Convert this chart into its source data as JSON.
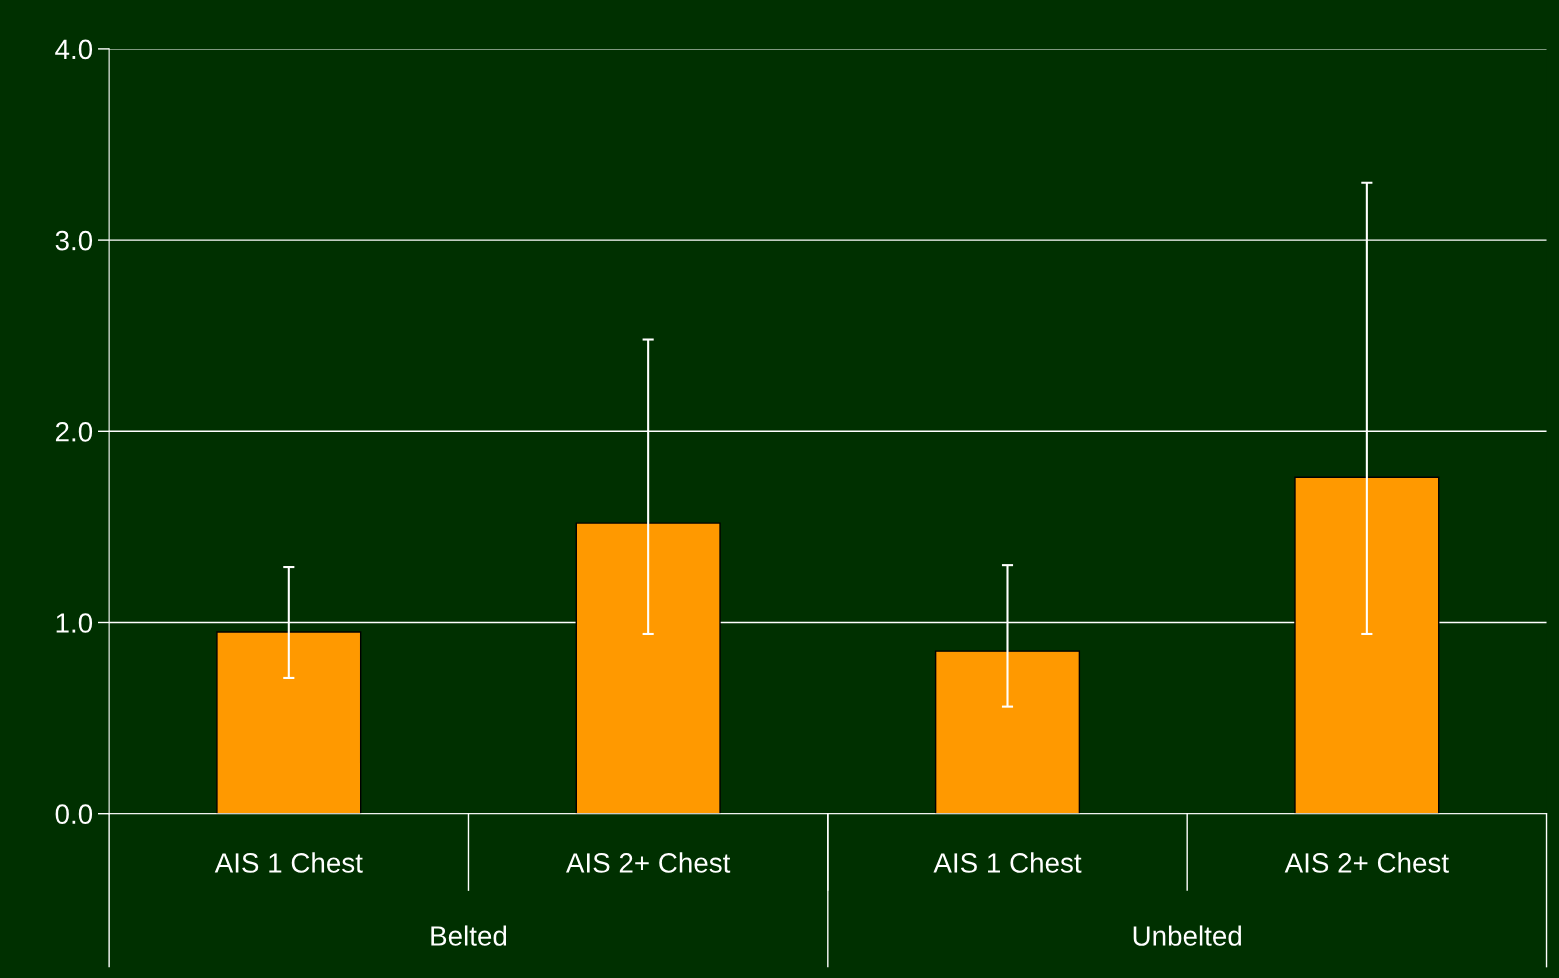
{
  "chart_data": {
    "type": "bar",
    "categories": [
      "AIS 1 Chest",
      "AIS 2+ Chest",
      "AIS 1 Chest",
      "AIS 2+ Chest"
    ],
    "values": [
      0.95,
      1.52,
      0.85,
      1.76
    ],
    "errors": [
      [
        0.71,
        1.29
      ],
      [
        0.94,
        2.48
      ],
      [
        0.56,
        1.3
      ],
      [
        0.94,
        3.3
      ]
    ],
    "color": "#ff9900",
    "ylim": [
      0,
      4
    ],
    "yticks": [
      {
        "value": 0,
        "label": "0.0"
      },
      {
        "value": 1,
        "label": "1.0"
      },
      {
        "value": 2,
        "label": "2.0"
      },
      {
        "value": 3,
        "label": "3.0"
      },
      {
        "value": 4,
        "label": "4.0"
      }
    ],
    "grid": "y",
    "annotations": [
      "Belted",
      "Unbelted"
    ]
  }
}
